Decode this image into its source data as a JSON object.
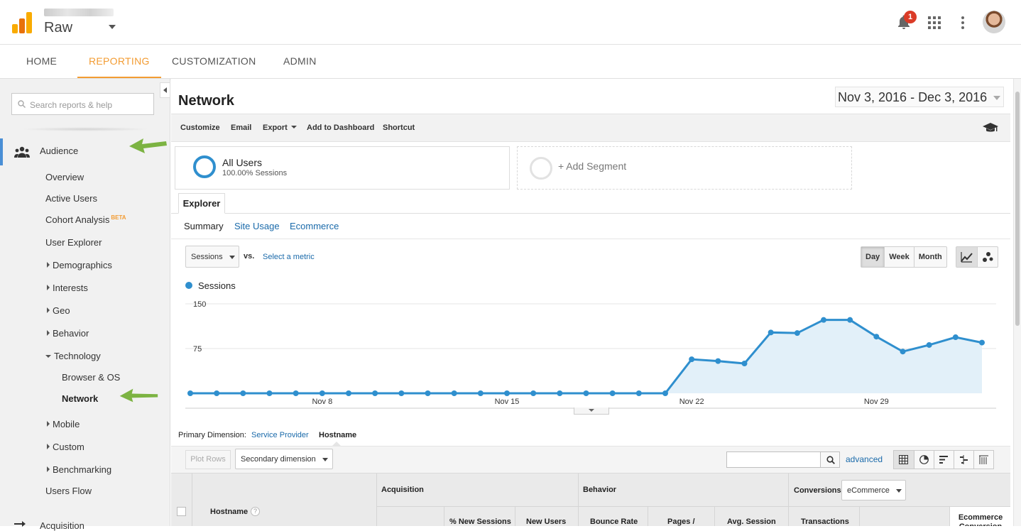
{
  "header": {
    "property_name": "Raw",
    "notification_count": "1"
  },
  "nav": {
    "tabs": [
      "HOME",
      "REPORTING",
      "CUSTOMIZATION",
      "ADMIN"
    ],
    "active": "REPORTING"
  },
  "sidebar": {
    "search_placeholder": "Search reports & help",
    "section": "Audience",
    "items": {
      "overview": "Overview",
      "active_users": "Active Users",
      "cohort": "Cohort Analysis",
      "cohort_badge": "BETA",
      "user_explorer": "User Explorer",
      "demographics": "Demographics",
      "interests": "Interests",
      "geo": "Geo",
      "behavior": "Behavior",
      "technology": "Technology",
      "browser_os": "Browser & OS",
      "network": "Network",
      "mobile": "Mobile",
      "custom": "Custom",
      "benchmarking": "Benchmarking",
      "users_flow": "Users Flow",
      "acquisition": "Acquisition"
    }
  },
  "page": {
    "title": "Network",
    "date_range": "Nov 3, 2016 - Dec 3, 2016"
  },
  "toolbar": {
    "customize": "Customize",
    "email": "Email",
    "export": "Export",
    "add_dashboard": "Add to Dashboard",
    "shortcut": "Shortcut"
  },
  "segments": {
    "name": "All Users",
    "sub": "100.00% Sessions",
    "add": "+ Add Segment"
  },
  "explorer": {
    "tab": "Explorer",
    "subtabs": [
      "Summary",
      "Site Usage",
      "Ecommerce"
    ],
    "metric": "Sessions",
    "vs": "vs.",
    "select_metric": "Select a metric",
    "granularity": [
      "Day",
      "Week",
      "Month"
    ],
    "granularity_selected": "Day"
  },
  "chart_data": {
    "type": "area",
    "series": [
      {
        "name": "Sessions",
        "values": [
          0,
          0,
          0,
          0,
          0,
          0,
          0,
          0,
          0,
          0,
          0,
          0,
          0,
          0,
          0,
          0,
          0,
          0,
          0,
          57,
          54,
          50,
          102,
          101,
          123,
          123,
          95,
          70,
          81,
          94,
          85
        ]
      }
    ],
    "x_tick_labels": [
      "Nov 8",
      "Nov 15",
      "Nov 22",
      "Nov 29"
    ],
    "y_tick_labels": [
      "150",
      "75"
    ],
    "ylim": [
      0,
      150
    ],
    "color": "#2f8fce",
    "fill": "#e2f0f9"
  },
  "dimension": {
    "label": "Primary Dimension:",
    "link": "Service Provider",
    "active": "Hostname"
  },
  "table": {
    "plot_rows": "Plot Rows",
    "secondary": "Secondary dimension",
    "advanced": "advanced",
    "groups": {
      "acquisition": "Acquisition",
      "behavior": "Behavior",
      "conversions": "Conversions",
      "conversions_select": "eCommerce"
    },
    "col_hostname": "Hostname",
    "col_help": "?",
    "columns": [
      "% New Sessions",
      "New Users",
      "Bounce Rate",
      "Pages /",
      "Avg. Session",
      "Transactions",
      "Ecommerce Conversion"
    ]
  }
}
